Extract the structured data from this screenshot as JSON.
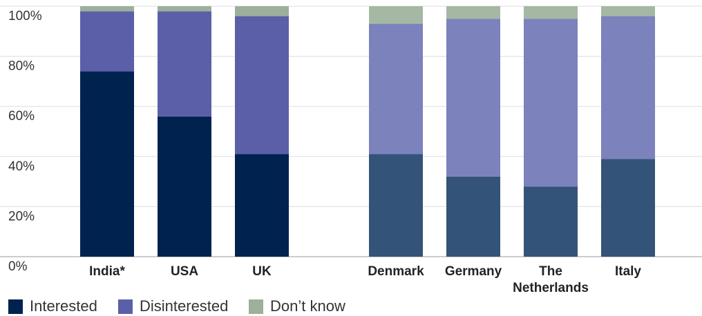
{
  "chart_data": {
    "type": "stacked_bar",
    "categories": [
      "India*",
      "USA",
      "UK",
      null,
      "Denmark",
      "Germany",
      "The Netherlands",
      "Italy"
    ],
    "series": [
      {
        "name": "Interested",
        "color": "#00224f",
        "bar_colors": [
          "#00224f",
          "#00224f",
          "#00224f",
          null,
          "#345378",
          "#345378",
          "#345378",
          "#345378"
        ],
        "values": [
          74,
          56,
          41,
          null,
          41,
          32,
          28,
          39
        ]
      },
      {
        "name": "Disinterested",
        "color": "#5b5fa8",
        "bar_colors": [
          "#5b5fa8",
          "#5b5fa8",
          "#5b5fa8",
          null,
          "#7b82bc",
          "#7b82bc",
          "#7b82bc",
          "#7b82bc"
        ],
        "values": [
          24,
          42,
          55,
          null,
          52,
          63,
          67,
          57
        ]
      },
      {
        "name": "Don’t know",
        "color": "#9cb09c",
        "bar_colors": [
          "#9cb09c",
          "#9cb09c",
          "#9cb09c",
          null,
          "#a4b8a4",
          "#a4b8a4",
          "#a4b8a4",
          "#a4b8a4"
        ],
        "values": [
          2,
          2,
          4,
          null,
          7,
          5,
          5,
          4
        ]
      }
    ],
    "ylim": [
      0,
      100
    ],
    "yticks": [
      {
        "value": 0,
        "label": "0%"
      },
      {
        "value": 20,
        "label": "20%"
      },
      {
        "value": 40,
        "label": "40%"
      },
      {
        "value": 60,
        "label": "60%"
      },
      {
        "value": 80,
        "label": "80%"
      },
      {
        "value": 100,
        "label": "100%"
      }
    ],
    "grid": true
  }
}
